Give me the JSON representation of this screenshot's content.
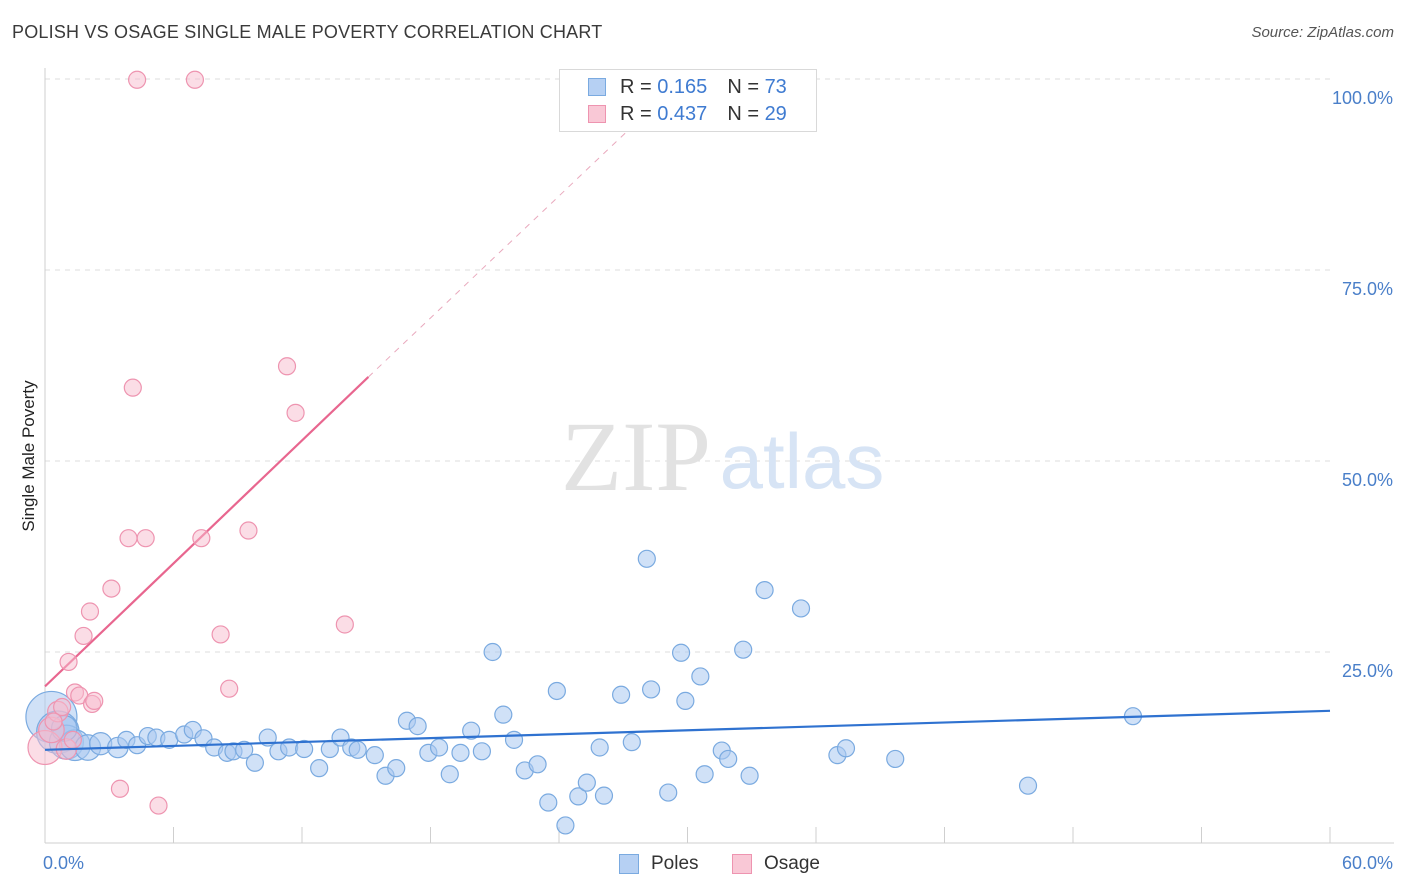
{
  "title": "POLISH VS OSAGE SINGLE MALE POVERTY CORRELATION CHART",
  "source": "Source: ZipAtlas.com",
  "colors": {
    "poles_fill": "#a9c8f0",
    "poles_stroke": "#7aaae0",
    "poles_line": "#2f72d0",
    "osage_fill": "#f7bccd",
    "osage_stroke": "#ee94b0",
    "osage_line": "#e8668f",
    "tick_label": "#4a7fc9",
    "grid": "#dcdcdc"
  },
  "watermark": {
    "zip": "ZIP",
    "atlas": "atlas"
  },
  "legend": {
    "rows": [
      {
        "r_label": "R =",
        "r_value": "0.165",
        "n_label": "N =",
        "n_value": "73"
      },
      {
        "r_label": "R =",
        "r_value": "0.437",
        "n_label": "N =",
        "n_value": "29"
      }
    ]
  },
  "series_legend": {
    "poles": "Poles",
    "osage": "Osage"
  },
  "chart_data": {
    "type": "scatter",
    "title": "POLISH VS OSAGE SINGLE MALE POVERTY CORRELATION CHART",
    "xlabel": "",
    "ylabel": "Single Male Poverty",
    "xlim": [
      0,
      60
    ],
    "ylim": [
      0,
      100
    ],
    "x_tick_labels": [
      "0.0%",
      "60.0%"
    ],
    "y_ticks": [
      25,
      50,
      75,
      100
    ],
    "y_tick_labels": [
      "25.0%",
      "50.0%",
      "75.0%",
      "100.0%"
    ],
    "grid": true,
    "series": [
      {
        "name": "Poles",
        "R": 0.165,
        "N": 73,
        "trend": {
          "x": [
            0,
            60
          ],
          "y": [
            12.2,
            17.3
          ]
        },
        "points": [
          [
            0.3,
            16.5,
            3
          ],
          [
            0.6,
            14.5,
            2.5
          ],
          [
            1.0,
            13.2,
            2
          ],
          [
            1.4,
            12.8,
            1.8
          ],
          [
            2.0,
            12.5,
            1.5
          ],
          [
            2.6,
            13.0,
            1.3
          ],
          [
            3.4,
            12.5,
            1.2
          ],
          [
            3.8,
            13.5,
            1
          ],
          [
            4.3,
            12.8,
            1
          ],
          [
            4.8,
            14.0,
            1
          ],
          [
            5.2,
            13.8,
            1
          ],
          [
            5.8,
            13.5,
            1
          ],
          [
            6.5,
            14.2,
            1
          ],
          [
            6.9,
            14.8,
            1
          ],
          [
            7.4,
            13.7,
            1
          ],
          [
            7.9,
            12.5,
            1
          ],
          [
            8.5,
            11.8,
            1
          ],
          [
            8.8,
            12.0,
            1
          ],
          [
            9.3,
            12.2,
            1
          ],
          [
            9.8,
            10.5,
            1
          ],
          [
            10.4,
            13.8,
            1
          ],
          [
            10.9,
            12.0,
            1
          ],
          [
            11.4,
            12.5,
            1
          ],
          [
            12.1,
            12.3,
            1
          ],
          [
            12.8,
            9.8,
            1
          ],
          [
            13.3,
            12.3,
            1
          ],
          [
            13.8,
            13.8,
            1
          ],
          [
            14.3,
            12.5,
            1
          ],
          [
            14.6,
            12.2,
            1
          ],
          [
            15.4,
            11.5,
            1
          ],
          [
            15.9,
            8.8,
            1
          ],
          [
            16.4,
            9.8,
            1
          ],
          [
            16.9,
            16.0,
            1
          ],
          [
            17.4,
            15.3,
            1
          ],
          [
            17.9,
            11.8,
            1
          ],
          [
            18.4,
            12.5,
            1
          ],
          [
            18.9,
            9.0,
            1
          ],
          [
            19.4,
            11.8,
            1
          ],
          [
            19.9,
            14.7,
            1
          ],
          [
            20.4,
            12.0,
            1
          ],
          [
            20.9,
            25.0,
            1
          ],
          [
            21.4,
            16.8,
            1
          ],
          [
            21.9,
            13.5,
            1
          ],
          [
            22.4,
            9.5,
            1
          ],
          [
            23.0,
            10.3,
            1
          ],
          [
            23.5,
            5.3,
            1
          ],
          [
            23.9,
            19.9,
            1
          ],
          [
            24.3,
            2.3,
            1
          ],
          [
            24.9,
            6.1,
            1
          ],
          [
            25.3,
            7.9,
            1
          ],
          [
            25.9,
            12.5,
            1
          ],
          [
            26.1,
            6.2,
            1
          ],
          [
            26.9,
            19.4,
            1
          ],
          [
            27.4,
            13.2,
            1
          ],
          [
            28.1,
            37.2,
            1
          ],
          [
            28.3,
            20.1,
            1
          ],
          [
            29.1,
            6.6,
            1
          ],
          [
            29.7,
            24.9,
            1
          ],
          [
            29.9,
            18.6,
            1
          ],
          [
            30.6,
            21.8,
            1
          ],
          [
            30.8,
            9.0,
            1
          ],
          [
            31.6,
            12.1,
            1
          ],
          [
            31.9,
            11.0,
            1
          ],
          [
            32.6,
            25.3,
            1
          ],
          [
            32.9,
            8.8,
            1
          ],
          [
            33.6,
            33.1,
            1
          ],
          [
            35.3,
            30.7,
            1
          ],
          [
            37.0,
            11.5,
            1
          ],
          [
            37.4,
            12.4,
            1
          ],
          [
            39.7,
            11.0,
            1
          ],
          [
            45.9,
            7.5,
            1
          ],
          [
            50.8,
            16.6,
            1
          ],
          [
            0.9,
            15.0,
            1.5
          ]
        ]
      },
      {
        "name": "Osage",
        "R": 0.437,
        "N": 29,
        "trend": {
          "x": [
            0,
            15.1
          ],
          "y": [
            20.5,
            61.0
          ]
        },
        "trend_extension": {
          "x": [
            15.1,
            27.5
          ],
          "y": [
            61.0,
            94.0
          ]
        },
        "points": [
          [
            0.0,
            12.5,
            2
          ],
          [
            0.3,
            14.8,
            1.5
          ],
          [
            0.6,
            17.2,
            1.2
          ],
          [
            1.0,
            12.3,
            1.2
          ],
          [
            0.8,
            17.8,
            1
          ],
          [
            1.1,
            23.7,
            1
          ],
          [
            1.4,
            19.7,
            1
          ],
          [
            1.6,
            19.3,
            1
          ],
          [
            1.8,
            27.1,
            1
          ],
          [
            2.1,
            30.3,
            1
          ],
          [
            2.2,
            18.2,
            1
          ],
          [
            2.3,
            18.6,
            1
          ],
          [
            3.1,
            33.3,
            1
          ],
          [
            3.5,
            7.1,
            1
          ],
          [
            3.9,
            39.9,
            1
          ],
          [
            4.1,
            59.6,
            1
          ],
          [
            4.3,
            99.9,
            1
          ],
          [
            4.7,
            39.9,
            1
          ],
          [
            5.3,
            4.9,
            1
          ],
          [
            7.0,
            99.9,
            1
          ],
          [
            7.3,
            39.9,
            1
          ],
          [
            8.2,
            27.3,
            1
          ],
          [
            8.6,
            20.2,
            1
          ],
          [
            9.5,
            40.9,
            1
          ],
          [
            11.3,
            62.4,
            1
          ],
          [
            11.7,
            56.3,
            1
          ],
          [
            14.0,
            28.6,
            1
          ],
          [
            0.4,
            15.9,
            1
          ],
          [
            1.3,
            13.5,
            1
          ]
        ]
      }
    ]
  }
}
